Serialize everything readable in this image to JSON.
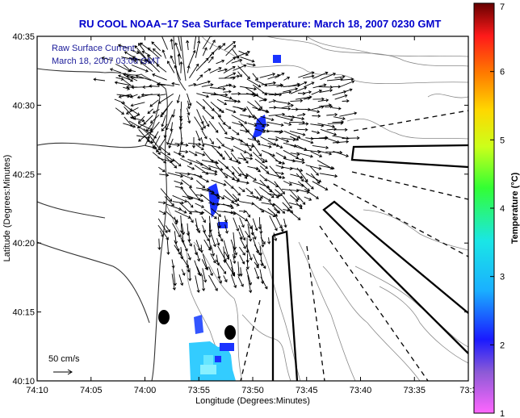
{
  "chart_data": {
    "type": "map-vector-field",
    "title": "RU COOL  NOAA−17  Sea Surface Temperature:  March 18, 2007 0230 GMT",
    "xlabel": "Longitude (Degrees:Minutes)",
    "ylabel": "Latitude (Degrees:Minutes)",
    "x_ticks": [
      "74:10",
      "74:05",
      "74:00",
      "73:55",
      "73:50",
      "73:45",
      "73:40",
      "73:35",
      "73:3"
    ],
    "x_tick_minutes_west": [
      10,
      5,
      0,
      -5,
      -10,
      -15,
      -20,
      -25,
      -30
    ],
    "y_ticks": [
      "40:10",
      "40:15",
      "40:20",
      "40:25",
      "40:30",
      "40:35"
    ],
    "y_tick_minutes": [
      10,
      15,
      20,
      25,
      30,
      35
    ],
    "xlim_minutes_west": [
      10,
      -30
    ],
    "ylim_minutes": [
      10,
      35
    ],
    "legend": {
      "label": "Raw Surface Current",
      "time": "March 18, 2007 03:00 GMT",
      "position": "top-left"
    },
    "scale_label": "50 cm/s",
    "colorbar": {
      "label": "Temperature (°C)",
      "ticks": [
        "1",
        "2",
        "3",
        "4",
        "5",
        "6",
        "7"
      ],
      "range": [
        1,
        7
      ],
      "colors": [
        "#ff66ff",
        "#8c5ad6",
        "#1a1aff",
        "#1ab0ff",
        "#1ae6e6",
        "#33ff33",
        "#ccff1a",
        "#ffd700",
        "#ff7a00",
        "#ff1a1a",
        "#660000"
      ]
    },
    "sst_patches_deg_c": [
      {
        "lon": "73:51",
        "lat": "40:29",
        "value": 2.0
      },
      {
        "lon": "73:52",
        "lat": "40:33",
        "value": 2.0
      },
      {
        "lon": "73:56",
        "lat": "40:23",
        "value": 2.0
      },
      {
        "lon": "73:56",
        "lat": "40:11",
        "value": 3.0
      }
    ],
    "current_field": {
      "origin_lon": "73:59",
      "origin_lat": "40:29",
      "dominant_direction": "southeast"
    }
  },
  "colors": {
    "title": "#0000cc",
    "legend_text": "#1a1a99",
    "axis": "#000000",
    "coastline": "#333333",
    "contour": "#888888",
    "sst_patch": "#1a33ff",
    "sst_patch_light": "#33ccff"
  }
}
